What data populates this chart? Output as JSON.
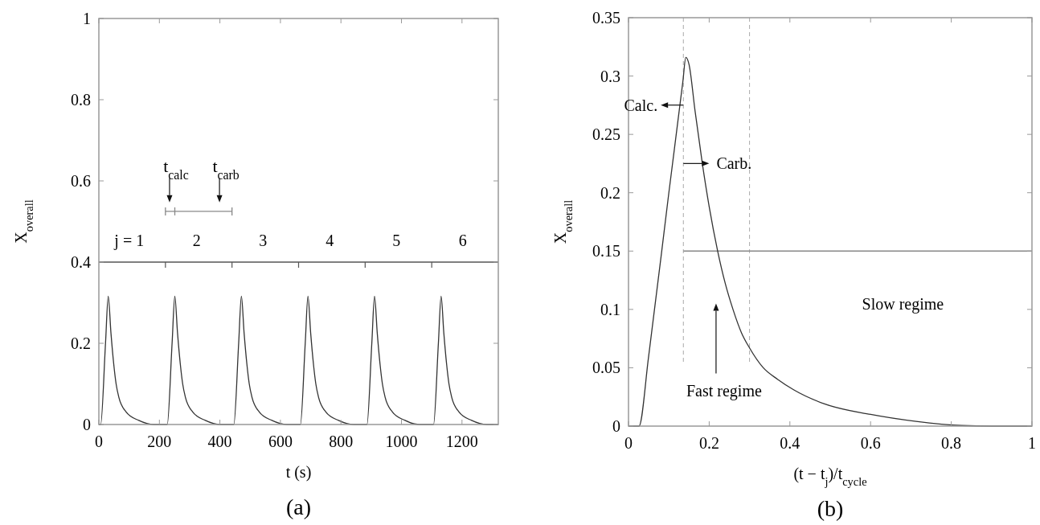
{
  "chart_data": [
    {
      "type": "line",
      "xlabel": "t (s)",
      "ylabel": "X$_{overall}$",
      "xlim": [
        0,
        1320
      ],
      "xticks": [
        0,
        200,
        400,
        600,
        800,
        1000,
        1200
      ],
      "ylim": [
        0,
        1
      ],
      "yticks": [
        0,
        0.2,
        0.4,
        0.6,
        0.8,
        1
      ],
      "grid": false,
      "series": [
        {
          "color": "#333333",
          "x": [
            0,
            6,
            22,
            31,
            40,
            49,
            57,
            66,
            90,
            132,
            182,
            198,
            220,
            226,
            242,
            251,
            260,
            269,
            277,
            286,
            310,
            352,
            402,
            418,
            440,
            446,
            462,
            471,
            480,
            489,
            497,
            506,
            530,
            572,
            622,
            638,
            660,
            666,
            682,
            691,
            700,
            709,
            717,
            726,
            750,
            792,
            842,
            858,
            880,
            886,
            902,
            911,
            920,
            929,
            937,
            946,
            970,
            1012,
            1062,
            1078,
            1100,
            1106,
            1122,
            1131,
            1140,
            1149,
            1157,
            1166,
            1190,
            1232,
            1282,
            1298,
            1320
          ],
          "values": [
            0,
            0,
            0.2,
            0.316,
            0.225,
            0.15,
            0.1,
            0.067,
            0.031,
            0.01,
            0,
            0,
            0,
            0,
            0.2,
            0.316,
            0.225,
            0.15,
            0.1,
            0.067,
            0.031,
            0.01,
            0,
            0,
            0,
            0,
            0.2,
            0.316,
            0.225,
            0.15,
            0.1,
            0.067,
            0.031,
            0.01,
            0,
            0,
            0,
            0,
            0.2,
            0.316,
            0.225,
            0.15,
            0.1,
            0.067,
            0.031,
            0.01,
            0,
            0,
            0,
            0,
            0.2,
            0.316,
            0.225,
            0.15,
            0.1,
            0.067,
            0.031,
            0.01,
            0,
            0,
            0,
            0,
            0.2,
            0.316,
            0.225,
            0.15,
            0.1,
            0.067,
            0.031,
            0.01,
            0,
            0,
            0
          ]
        }
      ],
      "ref_lines": [
        {
          "axis": "y",
          "value": 0.4,
          "color": "#555555"
        }
      ],
      "annotations": [
        "j = 1",
        "2",
        "3",
        "4",
        "5",
        "6",
        "t$_{calc}$",
        "t$_{carb}$",
        "(a)"
      ]
    },
    {
      "type": "line",
      "xlabel": "(t − t$_{j}$)/t$_{cycle}$",
      "ylabel": "X$_{overall}$",
      "xlim": [
        0,
        1
      ],
      "xticks": [
        0,
        0.2,
        0.4,
        0.6,
        0.8,
        1
      ],
      "ylim": [
        0,
        0.35
      ],
      "yticks": [
        0,
        0.05,
        0.1,
        0.15,
        0.2,
        0.25,
        0.3,
        0.35
      ],
      "grid": false,
      "series": [
        {
          "color": "#333333",
          "x": [
            0,
            0.026,
            0.05,
            0.1,
            0.135,
            0.142,
            0.15,
            0.165,
            0.183,
            0.2,
            0.221,
            0.24,
            0.259,
            0.28,
            0.3,
            0.334,
            0.37,
            0.41,
            0.486,
            0.6,
            0.713,
            0.826,
            0.9,
            1
          ],
          "values": [
            0,
            0,
            0.06,
            0.2,
            0.296,
            0.316,
            0.31,
            0.27,
            0.225,
            0.188,
            0.15,
            0.122,
            0.1,
            0.08,
            0.067,
            0.05,
            0.04,
            0.031,
            0.019,
            0.01,
            0.004,
            0.0005,
            0,
            0
          ]
        }
      ],
      "ref_lines": [
        {
          "axis": "x",
          "value": 0.136,
          "color": "#aaaaaa",
          "line_style": "dashed"
        },
        {
          "axis": "x",
          "value": 0.3,
          "color": "#aaaaaa",
          "line_style": "dashed"
        },
        {
          "axis": "y",
          "value": 0.15,
          "color": "#888888"
        }
      ],
      "annotations": [
        "Calc.",
        "Carb.",
        "Fast regime",
        "Slow regime",
        "(b)"
      ]
    }
  ]
}
